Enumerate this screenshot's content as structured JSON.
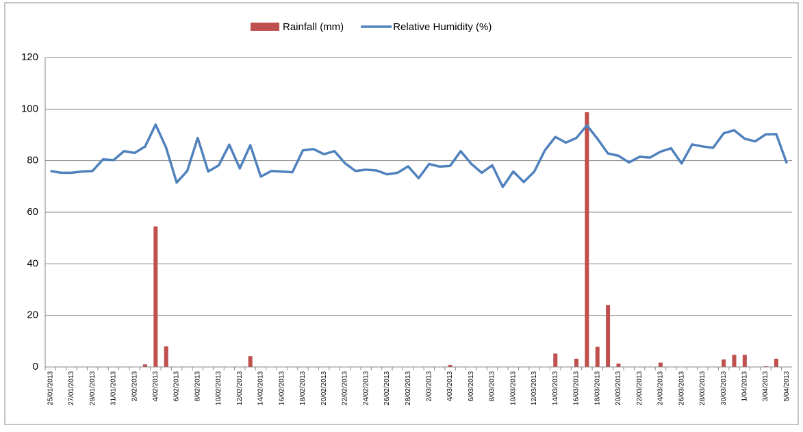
{
  "chart_data": {
    "type": "bar-line",
    "categories": [
      "25/01/2013",
      null,
      "27/01/2013",
      null,
      "29/01/2013",
      null,
      "31/01/2013",
      null,
      "2/02/2013",
      null,
      "4/02/2013",
      null,
      "6/02/2013",
      null,
      "8/02/2013",
      null,
      "10/02/2013",
      null,
      "12/02/2013",
      null,
      "14/02/2013",
      null,
      "16/02/2013",
      null,
      "18/02/2013",
      null,
      "20/02/2013",
      null,
      "22/02/2013",
      null,
      "24/02/2013",
      null,
      "26/02/2013",
      null,
      "28/02/2013",
      null,
      "2/03/2013",
      null,
      "4/03/2013",
      null,
      "6/03/2013",
      null,
      "8/03/2013",
      null,
      "10/03/2013",
      null,
      "12/03/2013",
      null,
      "14/03/2013",
      null,
      "16/03/2013",
      null,
      "18/03/2013",
      null,
      "20/03/2013",
      null,
      "22/03/2013",
      null,
      "24/03/2013",
      null,
      "26/03/2013",
      null,
      "28/03/2013",
      null,
      "30/03/2013",
      null,
      "1/04/2013",
      null,
      "3/04/2013",
      null,
      "5/04/2013"
    ],
    "series": [
      {
        "name": "Rainfall (mm)",
        "type": "bar",
        "color": "#c0504d",
        "values": [
          0,
          0,
          0,
          0,
          0,
          0,
          0,
          0,
          0,
          1,
          54.5,
          8,
          0,
          0,
          0,
          0,
          0,
          0,
          0,
          4.2,
          0,
          0,
          0,
          0,
          0,
          0,
          0,
          0,
          0,
          0,
          0,
          0,
          0,
          0,
          0,
          0,
          0,
          0,
          0.8,
          0,
          0,
          0,
          0,
          0,
          0,
          0,
          0,
          0,
          5.2,
          0,
          3.2,
          98.8,
          7.8,
          24,
          1.3,
          0,
          0,
          0,
          1.7,
          0,
          0,
          0,
          0,
          0,
          2.9,
          4.7,
          4.7,
          0,
          0.3,
          3.2,
          0
        ]
      },
      {
        "name": "Relative Humidity (%)",
        "type": "line",
        "color": "#4f81bd",
        "values": [
          76,
          75.3,
          75.3,
          75.8,
          76,
          80.5,
          80.2,
          83.7,
          83,
          85.5,
          94,
          85,
          71.5,
          76,
          88.8,
          75.8,
          78.2,
          86.2,
          77,
          86,
          73.8,
          76,
          75.8,
          75.5,
          84,
          84.5,
          82.5,
          83.7,
          79,
          76,
          76.5,
          76.2,
          74.7,
          75.3,
          77.8,
          73.2,
          78.7,
          77.7,
          78,
          83.7,
          78.8,
          75.3,
          78.2,
          69.8,
          75.8,
          71.7,
          75.8,
          84,
          89.2,
          87,
          88.8,
          93.7,
          88.5,
          82.8,
          81.9,
          79.3,
          81.5,
          81.2,
          83.5,
          84.8,
          78.9,
          86.3,
          85.5,
          85,
          90.6,
          91.8,
          88.5,
          87.5,
          90.2,
          90.3,
          79
        ]
      }
    ],
    "ylim": [
      0,
      120
    ],
    "yticks": [
      0,
      20,
      40,
      60,
      80,
      100,
      120
    ],
    "grid": true,
    "legend": "top"
  }
}
